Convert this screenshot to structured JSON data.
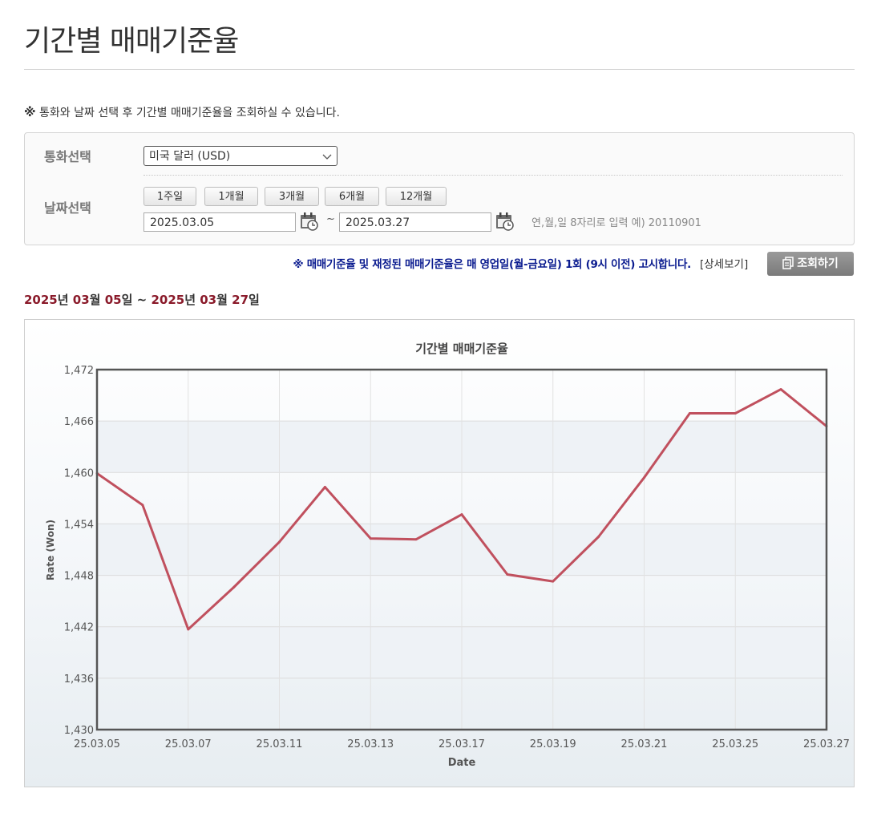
{
  "page": {
    "title": "기간별 매매기준율",
    "notice_mark": "※",
    "notice": "통화와 날짜 선택 후 기간별 매매기준율을 조회하실 수 있습니다."
  },
  "filters": {
    "currency_label": "통화선택",
    "currency_value": "미국 달러 (USD)",
    "date_label": "날짜선택",
    "period_buttons": [
      "1주일",
      "1개월",
      "3개월",
      "6개월",
      "12개월"
    ],
    "start_date": "2025.03.05",
    "tilde": "~",
    "end_date": "2025.03.27",
    "date_hint": "연,월,일 8자리로 입력 예) 20110901"
  },
  "announcement": "※ 매매기준율 및 재정된 매매기준율은 매 영업일(월-금요일) 1회 (9시 이전) 고시합니다.",
  "detail_link": "[상세보기]",
  "search_button": "조회하기",
  "range": {
    "y1": "2025",
    "u_year1": "년",
    "m1": "03",
    "u_month1": "월",
    "d1": "05",
    "u_day1": "일",
    "sep": "~",
    "y2": "2025",
    "u_year2": "년",
    "m2": "03",
    "u_month2": "월",
    "d2": "27",
    "u_day2": "일"
  },
  "colors": {
    "line": "#c0505e",
    "accent_dark": "#8a1a2a",
    "announce": "#0a1b8f"
  },
  "icons": [
    "calendar-icon",
    "chevron-down-icon",
    "document-icon"
  ],
  "chart_data": {
    "type": "line",
    "title": "기간별 매매기준율",
    "xlabel": "Date",
    "ylabel": "Rate (Won)",
    "ylim": [
      1430,
      1472
    ],
    "yticks": [
      "1,430",
      "1,436",
      "1,442",
      "1,448",
      "1,454",
      "1,460",
      "1,466",
      "1,472"
    ],
    "xtick_labels": [
      "25.03.05",
      "25.03.07",
      "25.03.11",
      "25.03.13",
      "25.03.17",
      "25.03.19",
      "25.03.21",
      "25.03.25",
      "25.03.27"
    ],
    "grid": true,
    "series": [
      {
        "x": [
          "25.03.05",
          "25.03.06",
          "25.03.07",
          "25.03.10",
          "25.03.11",
          "25.03.12",
          "25.03.13",
          "25.03.14",
          "25.03.17",
          "25.03.18",
          "25.03.19",
          "25.03.20",
          "25.03.21",
          "25.03.24",
          "25.03.25",
          "25.03.26",
          "25.03.27"
        ],
        "values": [
          1459.9,
          1456.2,
          1441.7,
          1446.6,
          1451.9,
          1458.3,
          1452.3,
          1452.2,
          1455.1,
          1448.1,
          1447.3,
          1452.5,
          1459.4,
          1466.9,
          1466.9,
          1469.7,
          1465.4
        ]
      }
    ]
  }
}
